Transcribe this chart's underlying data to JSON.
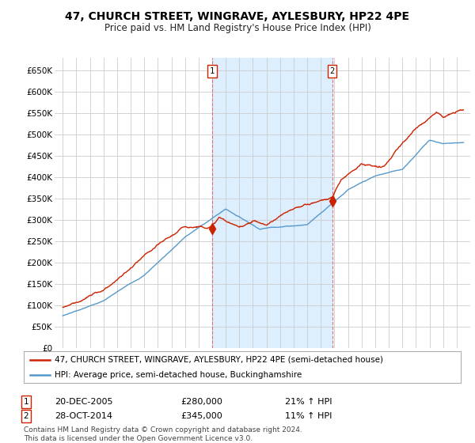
{
  "title": "47, CHURCH STREET, WINGRAVE, AYLESBURY, HP22 4PE",
  "subtitle": "Price paid vs. HM Land Registry's House Price Index (HPI)",
  "background_color": "#ffffff",
  "plot_bg_color": "#ffffff",
  "shaded_region_color": "#ddeeff",
  "grid_color": "#cccccc",
  "red_line_color": "#cc2200",
  "blue_line_color": "#5599cc",
  "sale1_x": 2006.0,
  "sale1_price": 280000,
  "sale2_x": 2014.83,
  "sale2_price": 345000,
  "legend_red": "47, CHURCH STREET, WINGRAVE, AYLESBURY, HP22 4PE (semi-detached house)",
  "legend_blue": "HPI: Average price, semi-detached house, Buckinghamshire",
  "table_row1": [
    "1",
    "20-DEC-2005",
    "£280,000",
    "21% ↑ HPI"
  ],
  "table_row2": [
    "2",
    "28-OCT-2014",
    "£345,000",
    "11% ↑ HPI"
  ],
  "footer": "Contains HM Land Registry data © Crown copyright and database right 2024.\nThis data is licensed under the Open Government Licence v3.0.",
  "title_fontsize": 10,
  "subtitle_fontsize": 8.5,
  "tick_fontsize": 7.5,
  "legend_fontsize": 7.5,
  "table_fontsize": 8,
  "footer_fontsize": 6.5,
  "ylim": [
    0,
    680000
  ],
  "yticks": [
    0,
    50000,
    100000,
    150000,
    200000,
    250000,
    300000,
    350000,
    400000,
    450000,
    500000,
    550000,
    600000,
    650000
  ],
  "xlim_left": 1994.4,
  "xlim_right": 2025.0
}
